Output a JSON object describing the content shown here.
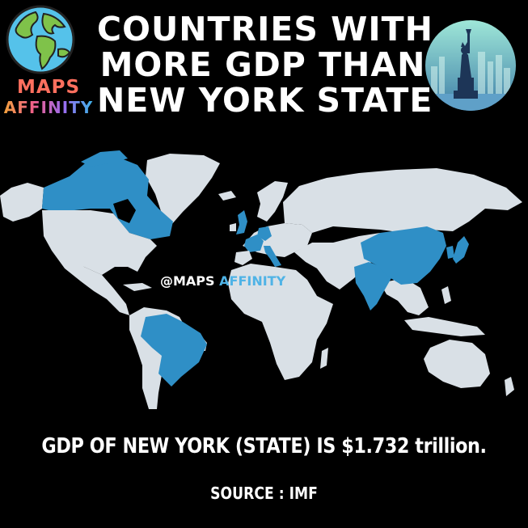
{
  "title": {
    "line1": "COUNTRIES WITH",
    "line2": "MORE GDP THAN",
    "line3": "NEW YORK STATE"
  },
  "logo": {
    "line1": "MAPS",
    "line2": "AFFINITY",
    "globe_icon": "earth-globe-icon",
    "statue_icon": "statue-of-liberty-icon"
  },
  "watermark": {
    "part1": "@MAPS",
    "part2": "AFFINITY"
  },
  "footer": {
    "gdp_statement": "GDP OF NEW YORK (STATE) IS $1.732 trillion.",
    "source": "SOURCE : IMF"
  },
  "map": {
    "highlighted_countries": [
      "Canada",
      "Brazil",
      "United Kingdom",
      "France",
      "Germany",
      "Italy",
      "India",
      "China",
      "South Korea",
      "Japan"
    ],
    "colors": {
      "highlight": "#2f8fc6",
      "land": "#d9e0e6",
      "background": "#000000"
    }
  }
}
